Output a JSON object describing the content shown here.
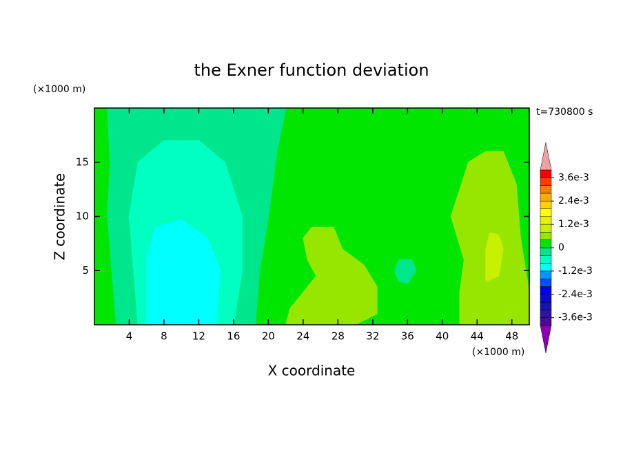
{
  "chart_data": {
    "type": "contour",
    "title": "the Exner function deviation",
    "x_label": "X coordinate",
    "y_label": "Z coordinate",
    "x_unit": "(×1000 m)",
    "y_unit": "(×1000 m)",
    "time_label": "t=730800 s",
    "xlim": [
      0,
      50
    ],
    "ylim": [
      0,
      20
    ],
    "xticks": [
      4,
      8,
      12,
      16,
      20,
      24,
      28,
      32,
      36,
      40,
      44,
      48
    ],
    "yticks": [
      5,
      10,
      15
    ],
    "levels": [
      -0.004,
      -0.0036,
      -0.0032,
      -0.0028,
      -0.0024,
      -0.002,
      -0.0016,
      -0.0012,
      -0.0008,
      -0.0004,
      0,
      0.0004,
      0.0008,
      0.0012,
      0.0016,
      0.002,
      0.0024,
      0.0028,
      0.0032,
      0.0036,
      0.004
    ],
    "colors": [
      "#4b0a9b",
      "#2a14a8",
      "#1414b4",
      "#0a0ad2",
      "#0000f0",
      "#0050ff",
      "#0096ff",
      "#00ffff",
      "#00ffc0",
      "#00e68c",
      "#00e600",
      "#96e600",
      "#c8f000",
      "#e6f000",
      "#ffff00",
      "#ffd200",
      "#ffaa00",
      "#ff7800",
      "#ff3c00",
      "#ff0000"
    ],
    "under_color": "#8c00b4",
    "over_color": "#f0a0a0",
    "background_level": 0,
    "colorbar_ticks": [
      {
        "value": 0.0036,
        "label": "3.6e-3"
      },
      {
        "value": 0.0024,
        "label": "2.4e-3"
      },
      {
        "value": 0.0012,
        "label": "1.2e-3"
      },
      0,
      {
        "value": -0.0012,
        "label": "-1.2e-3"
      },
      {
        "value": -0.0024,
        "label": "-2.4e-3"
      },
      {
        "value": -0.0036,
        "label": "-3.6e-3"
      }
    ],
    "regions": [
      {
        "level": -0.0004,
        "x": [
          1.5,
          22,
          21,
          20,
          19,
          18.5,
          2.5,
          2,
          1.5,
          1.8
        ],
        "y": [
          20,
          20,
          16,
          10,
          5,
          0,
          0,
          5,
          10,
          15
        ]
      },
      {
        "level": -0.0008,
        "x": [
          5,
          16,
          17,
          17,
          15,
          12,
          8,
          5,
          4,
          4.5
        ],
        "y": [
          0,
          0,
          5,
          10,
          15,
          17,
          17,
          15,
          10,
          5
        ]
      },
      {
        "level": -0.0012,
        "x": [
          6,
          14,
          14.5,
          13,
          10,
          7,
          6
        ],
        "y": [
          0,
          0,
          5,
          8,
          9.7,
          9,
          6
        ]
      },
      {
        "level": -0.0004,
        "x": [
          34.5,
          35,
          36.5,
          37,
          36,
          35
        ],
        "y": [
          5,
          6,
          6,
          5,
          3.8,
          4
        ]
      },
      {
        "level": 0.0004,
        "x": [
          22,
          30,
          32.5,
          32.5,
          31,
          28.5,
          27.5,
          25,
          24,
          24.5,
          25.5,
          24,
          22.5
        ],
        "y": [
          0,
          0,
          1,
          3.5,
          5.5,
          7,
          9,
          9,
          8,
          6,
          4.5,
          3,
          1.5
        ]
      },
      {
        "level": 0.0004,
        "x": [
          41,
          43,
          45,
          47,
          48.5,
          49,
          50,
          50,
          42,
          42,
          42.5
        ],
        "y": [
          10,
          15,
          16,
          16,
          13,
          8,
          3,
          0,
          0,
          3,
          6
        ]
      },
      {
        "level": 0.0008,
        "x": [
          45,
          46.5,
          47,
          46.5,
          45.5,
          45
        ],
        "y": [
          4,
          4.5,
          7,
          8.3,
          8.5,
          7
        ]
      }
    ]
  }
}
